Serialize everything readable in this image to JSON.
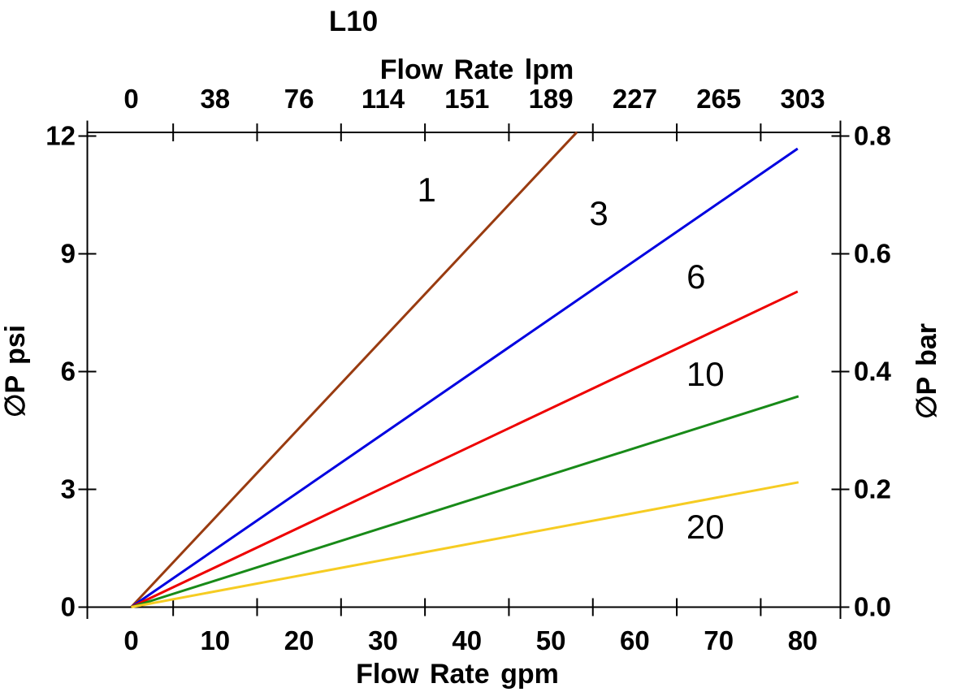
{
  "chart_data": {
    "type": "line",
    "title": "L10",
    "x_axis_bottom": {
      "label": "Flow Rate gpm",
      "ticks": [
        0,
        10,
        20,
        30,
        40,
        50,
        60,
        70,
        80
      ]
    },
    "x_axis_top": {
      "label": "Flow Rate lpm",
      "ticks": [
        0,
        38,
        76,
        114,
        151,
        189,
        227,
        265,
        303
      ]
    },
    "y_axis_left": {
      "label": "∅P psi",
      "ticks": [
        0,
        3,
        6,
        9,
        12
      ],
      "range": [
        0,
        12
      ]
    },
    "y_axis_right": {
      "label": "∅P bar",
      "ticks": [
        "0.0",
        "0.2",
        "0.4",
        "0.6",
        "0.8"
      ]
    },
    "x_range_gpm": [
      0,
      80
    ],
    "unlabeled_tick_positions_gpm": [
      5,
      15,
      25,
      35,
      45,
      55,
      65,
      75
    ],
    "frame_color": "#000000",
    "series": [
      {
        "name": "1",
        "color": "#993B10",
        "points": [
          [
            0,
            0
          ],
          [
            53.1,
            12.1
          ]
        ],
        "label_at": [
          35.2,
          10.65
        ]
      },
      {
        "name": "3",
        "color": "#0000E0",
        "points": [
          [
            0,
            0
          ],
          [
            79.4,
            11.68
          ]
        ],
        "label_at": [
          55.7,
          10.05
        ]
      },
      {
        "name": "6",
        "color": "#EE0000",
        "points": [
          [
            0,
            0
          ],
          [
            79.4,
            8.04
          ]
        ],
        "label_at": [
          67.3,
          8.43
        ]
      },
      {
        "name": "10",
        "color": "#188A18",
        "points": [
          [
            0,
            0
          ],
          [
            79.5,
            5.37
          ]
        ],
        "label_at": [
          68.4,
          5.95
        ]
      },
      {
        "name": "20",
        "color": "#F6CC22",
        "points": [
          [
            0,
            0
          ],
          [
            79.5,
            3.18
          ]
        ],
        "label_at": [
          68.4,
          2.06
        ]
      }
    ]
  }
}
